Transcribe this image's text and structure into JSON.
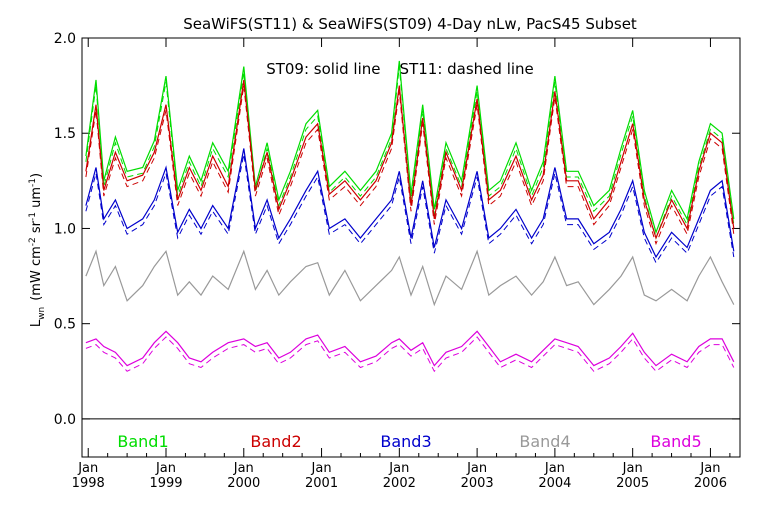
{
  "chart_data": {
    "type": "line",
    "title": "SeaWiFS(ST11) & SeaWiFS(ST09) 4-Day nLw, PacS45 Subset",
    "annotation": "ST09: solid line    ST11: dashed line",
    "ylabel_main": "L",
    "ylabel_sub": "wn",
    "ylabel_units": "(mW cm",
    "ylabel_units_2": " sr",
    "ylabel_units_3": " um",
    "ylabel_units_4": ")",
    "ylabel_exp": "-2",
    "ylabel_exp_2": "-1",
    "ylabel_exp_3": "-1",
    "ylim": [
      -0.2,
      2.0
    ],
    "xlim": [
      1997.92,
      2006.38
    ],
    "yticks": [
      "0.0",
      "0.5",
      "1.0",
      "1.5",
      "2.0"
    ],
    "ytick_values": [
      0.0,
      0.5,
      1.0,
      1.5,
      2.0
    ],
    "xticks_month": [
      "Jan",
      "Jan",
      "Jan",
      "Jan",
      "Jan",
      "Jan",
      "Jan",
      "Jan",
      "Jan"
    ],
    "xticks_year": [
      "1998",
      "1999",
      "2000",
      "2001",
      "2002",
      "2003",
      "2004",
      "2005",
      "2006"
    ],
    "xtick_values": [
      1998,
      1999,
      2000,
      2001,
      2002,
      2003,
      2004,
      2005,
      2006
    ],
    "legend_placement": "bottom-inside",
    "grid": false,
    "zero_line": 0.0,
    "series": [
      {
        "name": "Band1",
        "color": "#00dd00",
        "x": [
          1997.97,
          1998.1,
          1998.2,
          1998.35,
          1998.5,
          1998.7,
          1998.85,
          1999.0,
          1999.15,
          1999.3,
          1999.45,
          1999.6,
          1999.8,
          2000.0,
          2000.15,
          2000.3,
          2000.45,
          2000.6,
          2000.8,
          2000.95,
          2001.1,
          2001.3,
          2001.5,
          2001.7,
          2001.9,
          2002.0,
          2002.15,
          2002.3,
          2002.45,
          2002.6,
          2002.8,
          2003.0,
          2003.15,
          2003.3,
          2003.5,
          2003.7,
          2003.85,
          2004.0,
          2004.15,
          2004.3,
          2004.5,
          2004.7,
          2004.85,
          2005.0,
          2005.15,
          2005.3,
          2005.5,
          2005.7,
          2005.85,
          2006.0,
          2006.15,
          2006.3
        ],
        "values": [
          1.38,
          1.78,
          1.25,
          1.48,
          1.3,
          1.32,
          1.46,
          1.8,
          1.2,
          1.38,
          1.25,
          1.45,
          1.3,
          1.85,
          1.22,
          1.45,
          1.15,
          1.3,
          1.55,
          1.62,
          1.22,
          1.3,
          1.2,
          1.3,
          1.5,
          1.88,
          1.18,
          1.65,
          1.1,
          1.45,
          1.25,
          1.75,
          1.2,
          1.25,
          1.45,
          1.2,
          1.35,
          1.8,
          1.3,
          1.3,
          1.12,
          1.2,
          1.42,
          1.62,
          1.2,
          0.98,
          1.2,
          1.05,
          1.35,
          1.55,
          1.5,
          1.05
        ]
      },
      {
        "name": "Band2",
        "color": "#cc0000",
        "x": [
          1997.97,
          1998.1,
          1998.2,
          1998.35,
          1998.5,
          1998.7,
          1998.85,
          1999.0,
          1999.15,
          1999.3,
          1999.45,
          1999.6,
          1999.8,
          2000.0,
          2000.15,
          2000.3,
          2000.45,
          2000.6,
          2000.8,
          2000.95,
          2001.1,
          2001.3,
          2001.5,
          2001.7,
          2001.9,
          2002.0,
          2002.15,
          2002.3,
          2002.45,
          2002.6,
          2002.8,
          2003.0,
          2003.15,
          2003.3,
          2003.5,
          2003.7,
          2003.85,
          2004.0,
          2004.15,
          2004.3,
          2004.5,
          2004.7,
          2004.85,
          2005.0,
          2005.15,
          2005.3,
          2005.5,
          2005.7,
          2005.85,
          2006.0,
          2006.15,
          2006.3
        ],
        "values": [
          1.3,
          1.65,
          1.2,
          1.4,
          1.25,
          1.28,
          1.4,
          1.65,
          1.15,
          1.32,
          1.2,
          1.38,
          1.22,
          1.78,
          1.2,
          1.4,
          1.1,
          1.25,
          1.48,
          1.55,
          1.18,
          1.25,
          1.15,
          1.25,
          1.45,
          1.75,
          1.12,
          1.58,
          1.05,
          1.4,
          1.2,
          1.68,
          1.15,
          1.2,
          1.38,
          1.15,
          1.28,
          1.72,
          1.25,
          1.25,
          1.05,
          1.15,
          1.35,
          1.55,
          1.15,
          0.95,
          1.15,
          1.0,
          1.3,
          1.5,
          1.45,
          1.0
        ]
      },
      {
        "name": "Band3",
        "color": "#0000cc",
        "x": [
          1997.97,
          1998.1,
          1998.2,
          1998.35,
          1998.5,
          1998.7,
          1998.85,
          1999.0,
          1999.15,
          1999.3,
          1999.45,
          1999.6,
          1999.8,
          2000.0,
          2000.15,
          2000.3,
          2000.45,
          2000.6,
          2000.8,
          2000.95,
          2001.1,
          2001.3,
          2001.5,
          2001.7,
          2001.9,
          2002.0,
          2002.15,
          2002.3,
          2002.45,
          2002.6,
          2002.8,
          2003.0,
          2003.15,
          2003.3,
          2003.5,
          2003.7,
          2003.85,
          2004.0,
          2004.15,
          2004.3,
          2004.5,
          2004.7,
          2004.85,
          2005.0,
          2005.15,
          2005.3,
          2005.5,
          2005.7,
          2005.85,
          2006.0,
          2006.15,
          2006.3
        ],
        "values": [
          1.12,
          1.32,
          1.05,
          1.15,
          1.0,
          1.05,
          1.15,
          1.32,
          0.98,
          1.1,
          1.0,
          1.12,
          1.0,
          1.42,
          1.0,
          1.15,
          0.95,
          1.05,
          1.2,
          1.3,
          1.0,
          1.05,
          0.95,
          1.05,
          1.15,
          1.3,
          0.95,
          1.25,
          0.9,
          1.15,
          1.0,
          1.3,
          0.95,
          1.0,
          1.1,
          0.95,
          1.05,
          1.32,
          1.05,
          1.05,
          0.92,
          0.98,
          1.1,
          1.25,
          0.98,
          0.85,
          0.98,
          0.9,
          1.05,
          1.2,
          1.25,
          0.88
        ]
      },
      {
        "name": "Band4",
        "color": "#999999",
        "x": [
          1997.97,
          1998.1,
          1998.2,
          1998.35,
          1998.5,
          1998.7,
          1998.85,
          1999.0,
          1999.15,
          1999.3,
          1999.45,
          1999.6,
          1999.8,
          2000.0,
          2000.15,
          2000.3,
          2000.45,
          2000.6,
          2000.8,
          2000.95,
          2001.1,
          2001.3,
          2001.5,
          2001.7,
          2001.9,
          2002.0,
          2002.15,
          2002.3,
          2002.45,
          2002.6,
          2002.8,
          2003.0,
          2003.15,
          2003.3,
          2003.5,
          2003.7,
          2003.85,
          2004.0,
          2004.15,
          2004.3,
          2004.5,
          2004.7,
          2004.85,
          2005.0,
          2005.15,
          2005.3,
          2005.5,
          2005.7,
          2005.85,
          2006.0,
          2006.15,
          2006.3
        ],
        "values": [
          0.75,
          0.88,
          0.7,
          0.8,
          0.62,
          0.7,
          0.8,
          0.88,
          0.65,
          0.72,
          0.65,
          0.75,
          0.68,
          0.88,
          0.68,
          0.78,
          0.65,
          0.72,
          0.8,
          0.82,
          0.65,
          0.78,
          0.62,
          0.7,
          0.78,
          0.85,
          0.65,
          0.8,
          0.6,
          0.75,
          0.68,
          0.88,
          0.65,
          0.7,
          0.75,
          0.65,
          0.72,
          0.85,
          0.7,
          0.72,
          0.6,
          0.68,
          0.75,
          0.85,
          0.65,
          0.62,
          0.68,
          0.62,
          0.75,
          0.85,
          0.72,
          0.6
        ]
      },
      {
        "name": "Band5",
        "color": "#dd00dd",
        "x": [
          1997.97,
          1998.1,
          1998.2,
          1998.35,
          1998.5,
          1998.7,
          1998.85,
          1999.0,
          1999.15,
          1999.3,
          1999.45,
          1999.6,
          1999.8,
          2000.0,
          2000.15,
          2000.3,
          2000.45,
          2000.6,
          2000.8,
          2000.95,
          2001.1,
          2001.3,
          2001.5,
          2001.7,
          2001.9,
          2002.0,
          2002.15,
          2002.3,
          2002.45,
          2002.6,
          2002.8,
          2003.0,
          2003.15,
          2003.3,
          2003.5,
          2003.7,
          2003.85,
          2004.0,
          2004.15,
          2004.3,
          2004.5,
          2004.7,
          2004.85,
          2005.0,
          2005.15,
          2005.3,
          2005.5,
          2005.7,
          2005.85,
          2006.0,
          2006.15,
          2006.3
        ],
        "values": [
          0.4,
          0.42,
          0.38,
          0.35,
          0.28,
          0.32,
          0.4,
          0.46,
          0.4,
          0.32,
          0.3,
          0.35,
          0.4,
          0.42,
          0.38,
          0.4,
          0.32,
          0.35,
          0.42,
          0.44,
          0.35,
          0.38,
          0.3,
          0.33,
          0.4,
          0.42,
          0.36,
          0.4,
          0.28,
          0.35,
          0.38,
          0.46,
          0.38,
          0.3,
          0.34,
          0.3,
          0.36,
          0.42,
          0.4,
          0.38,
          0.28,
          0.32,
          0.38,
          0.45,
          0.35,
          0.28,
          0.34,
          0.3,
          0.38,
          0.42,
          0.42,
          0.3
        ]
      }
    ]
  }
}
